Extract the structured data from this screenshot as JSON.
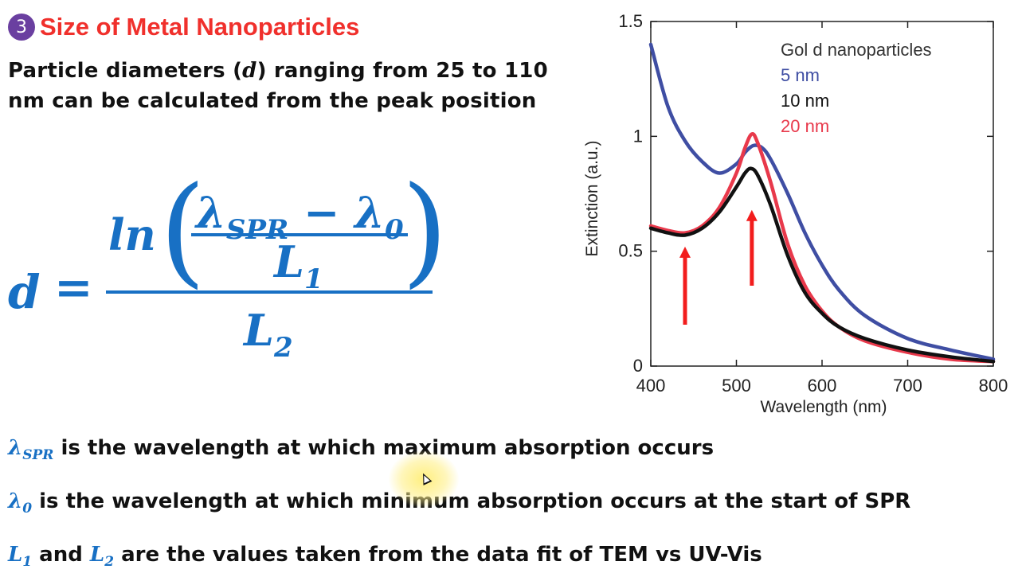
{
  "slide": {
    "badge": "3",
    "title": "Size of Metal Nanoparticles",
    "intro_before": "Particle diameters (",
    "intro_var": "d",
    "intro_after": ") ranging from 25 to 110 nm can be calculated from the peak position"
  },
  "formula": {
    "lhs": "d",
    "eq": "=",
    "ln": "ln",
    "lambda": "λ",
    "spr": "SPR",
    "minus": " − ",
    "zero": "0",
    "L": "L",
    "one": "1",
    "two": "2"
  },
  "definitions": {
    "def1_sym": "λ",
    "def1_sub": "SPR",
    "def1_text": " is the wavelength at which maximum absorption occurs",
    "def2_sym": "λ",
    "def2_sub": "0",
    "def2_text": " is the wavelength at which minimum absorption occurs at the start of SPR",
    "def3_sym1": "L",
    "def3_sub1": "1",
    "def3_mid": " and ",
    "def3_sym2": "L",
    "def3_sub2": "2",
    "def3_text": " are the values taken from the data fit of TEM vs UV-Vis"
  },
  "colors": {
    "accent_title": "#f0302c",
    "badge": "#6a3fa0",
    "formula_blue": "#1870c4",
    "series_5nm": "#3f4ea3",
    "series_10nm": "#111111",
    "series_20nm": "#e8394b",
    "arrow": "#f21d1d"
  },
  "chart_data": {
    "type": "line",
    "title": "",
    "xlabel": "Wavelength (nm)",
    "ylabel": "Extinction (a.u.)",
    "xlim": [
      400,
      800
    ],
    "ylim": [
      0,
      1.5
    ],
    "xticks": [
      "400",
      "500",
      "600",
      "700",
      "800"
    ],
    "yticks": [
      "0",
      "0.5",
      "1",
      "1.5"
    ],
    "legend_title": "Gol d nanoparticles",
    "legend_position": "top-right",
    "series": [
      {
        "name": "5 nm",
        "x": [
          400,
          420,
          440,
          460,
          480,
          500,
          510,
          520,
          530,
          540,
          560,
          580,
          600,
          620,
          650,
          700,
          750,
          800
        ],
        "y": [
          1.4,
          1.13,
          0.98,
          0.89,
          0.84,
          0.88,
          0.93,
          0.96,
          0.95,
          0.9,
          0.75,
          0.58,
          0.44,
          0.33,
          0.22,
          0.12,
          0.07,
          0.03
        ]
      },
      {
        "name": "10  nm",
        "x": [
          400,
          420,
          440,
          460,
          480,
          500,
          510,
          517,
          525,
          540,
          560,
          580,
          600,
          620,
          650,
          700,
          750,
          800
        ],
        "y": [
          0.6,
          0.58,
          0.57,
          0.6,
          0.67,
          0.78,
          0.84,
          0.86,
          0.83,
          0.7,
          0.48,
          0.32,
          0.23,
          0.17,
          0.12,
          0.07,
          0.04,
          0.02
        ]
      },
      {
        "name": "20 nm",
        "x": [
          400,
          420,
          440,
          460,
          480,
          500,
          510,
          518,
          525,
          540,
          560,
          580,
          600,
          620,
          650,
          700,
          750,
          800
        ],
        "y": [
          0.61,
          0.59,
          0.58,
          0.61,
          0.69,
          0.84,
          0.95,
          1.01,
          0.97,
          0.8,
          0.53,
          0.35,
          0.24,
          0.17,
          0.11,
          0.06,
          0.03,
          0.02
        ]
      }
    ],
    "arrows": [
      {
        "x": 440,
        "y_from": 0.18,
        "y_to": 0.52
      },
      {
        "x": 518,
        "y_from": 0.35,
        "y_to": 0.68
      }
    ],
    "grid": false
  }
}
